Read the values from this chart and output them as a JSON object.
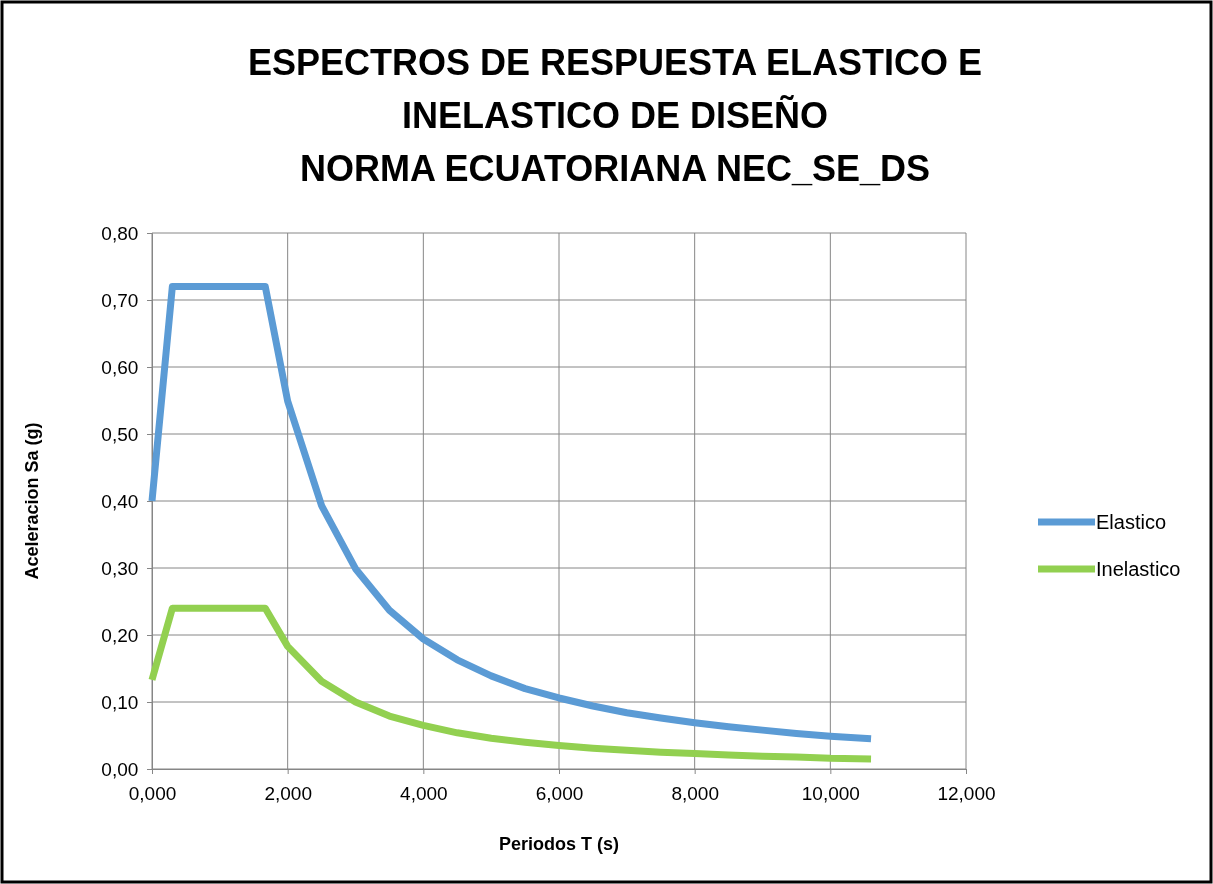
{
  "chart_data": {
    "type": "line",
    "title": "ESPECTROS DE RESPUESTA ELASTICO E\nINELASTICO DE DISEÑO\nNORMA ECUATORIANA NEC_SE_DS",
    "xlabel": "Periodos T (s)",
    "ylabel": "Aceleracion Sa (g)",
    "x": [
      0,
      0.3,
      1.67,
      2,
      2.5,
      3,
      3.5,
      4,
      4.5,
      5,
      5.5,
      6,
      6.5,
      7,
      7.5,
      8,
      8.5,
      9,
      9.5,
      10,
      10.6
    ],
    "series": [
      {
        "name": "Elastico",
        "color": "#5b9bd5",
        "values": [
          0.4,
          0.72,
          0.72,
          0.549,
          0.393,
          0.299,
          0.237,
          0.194,
          0.163,
          0.139,
          0.12,
          0.106,
          0.094,
          0.084,
          0.076,
          0.069,
          0.063,
          0.058,
          0.053,
          0.049,
          0.045
        ]
      },
      {
        "name": "Inelastico",
        "color": "#92d050",
        "values": [
          0.133,
          0.24,
          0.24,
          0.183,
          0.131,
          0.1,
          0.079,
          0.065,
          0.054,
          0.046,
          0.04,
          0.035,
          0.031,
          0.028,
          0.025,
          0.023,
          0.021,
          0.019,
          0.018,
          0.016,
          0.015
        ]
      }
    ],
    "xlim": [
      0,
      12
    ],
    "xticks": [
      {
        "value": 0,
        "label": "0,000"
      },
      {
        "value": 2,
        "label": "2,000"
      },
      {
        "value": 4,
        "label": "4,000"
      },
      {
        "value": 6,
        "label": "6,000"
      },
      {
        "value": 8,
        "label": "8,000"
      },
      {
        "value": 10,
        "label": "10,000"
      },
      {
        "value": 12,
        "label": "12,000"
      }
    ],
    "ylim": [
      0,
      0.8
    ],
    "yticks": [
      {
        "value": 0,
        "label": "0,00"
      },
      {
        "value": 0.1,
        "label": "0,10"
      },
      {
        "value": 0.2,
        "label": "0,20"
      },
      {
        "value": 0.3,
        "label": "0,30"
      },
      {
        "value": 0.4,
        "label": "0,40"
      },
      {
        "value": 0.5,
        "label": "0,50"
      },
      {
        "value": 0.6,
        "label": "0,60"
      },
      {
        "value": 0.7,
        "label": "0,70"
      },
      {
        "value": 0.8,
        "label": "0,80"
      }
    ],
    "grid": true,
    "legend": "right",
    "marker": "none",
    "line_style": "solid"
  }
}
